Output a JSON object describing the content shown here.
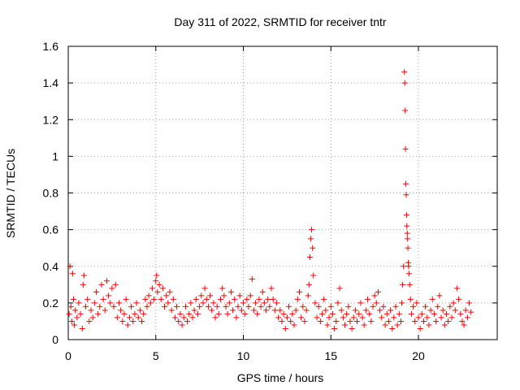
{
  "chart_data": {
    "type": "scatter",
    "title": "Day 311 of 2022, SRMTID for receiver tntr",
    "xlabel": "GPS time / hours",
    "ylabel": "SRMTID / TECUs",
    "xlim": [
      0,
      24.5
    ],
    "ylim": [
      0,
      1.6
    ],
    "xticks": [
      0,
      5,
      10,
      15,
      20
    ],
    "xtick_labels": [
      "0",
      "5",
      "10",
      "15",
      "20"
    ],
    "yticks": [
      0,
      0.2,
      0.4,
      0.6,
      0.8,
      1.0,
      1.2,
      1.4,
      1.6
    ],
    "ytick_labels": [
      "0",
      "0.2",
      "0.4",
      "0.6",
      "0.8",
      "1",
      "1.2",
      "1.4",
      "1.6"
    ],
    "grid": true,
    "marker": "+",
    "marker_color": "#ff0000",
    "series": [
      {
        "name": "SRMTID",
        "points": [
          [
            0.05,
            0.14
          ],
          [
            0.1,
            0.4
          ],
          [
            0.15,
            0.18
          ],
          [
            0.2,
            0.1
          ],
          [
            0.25,
            0.36
          ],
          [
            0.3,
            0.22
          ],
          [
            0.35,
            0.08
          ],
          [
            0.4,
            0.16
          ],
          [
            0.5,
            0.12
          ],
          [
            0.6,
            0.2
          ],
          [
            0.7,
            0.14
          ],
          [
            0.8,
            0.06
          ],
          [
            0.85,
            0.3
          ],
          [
            0.9,
            0.35
          ],
          [
            1.0,
            0.18
          ],
          [
            1.1,
            0.22
          ],
          [
            1.2,
            0.1
          ],
          [
            1.3,
            0.16
          ],
          [
            1.4,
            0.12
          ],
          [
            1.5,
            0.2
          ],
          [
            1.6,
            0.26
          ],
          [
            1.7,
            0.14
          ],
          [
            1.8,
            0.18
          ],
          [
            1.9,
            0.3
          ],
          [
            2.0,
            0.22
          ],
          [
            2.1,
            0.16
          ],
          [
            2.2,
            0.32
          ],
          [
            2.3,
            0.24
          ],
          [
            2.4,
            0.2
          ],
          [
            2.5,
            0.28
          ],
          [
            2.6,
            0.18
          ],
          [
            2.7,
            0.3
          ],
          [
            2.8,
            0.12
          ],
          [
            2.9,
            0.2
          ],
          [
            3.0,
            0.16
          ],
          [
            3.1,
            0.1
          ],
          [
            3.2,
            0.14
          ],
          [
            3.3,
            0.22
          ],
          [
            3.4,
            0.08
          ],
          [
            3.5,
            0.12
          ],
          [
            3.6,
            0.18
          ],
          [
            3.7,
            0.1
          ],
          [
            3.8,
            0.14
          ],
          [
            3.9,
            0.2
          ],
          [
            4.0,
            0.12
          ],
          [
            4.1,
            0.16
          ],
          [
            4.2,
            0.1
          ],
          [
            4.3,
            0.14
          ],
          [
            4.4,
            0.22
          ],
          [
            4.5,
            0.18
          ],
          [
            4.6,
            0.24
          ],
          [
            4.7,
            0.2
          ],
          [
            4.8,
            0.28
          ],
          [
            4.9,
            0.22
          ],
          [
            5.0,
            0.32
          ],
          [
            5.05,
            0.35
          ],
          [
            5.1,
            0.26
          ],
          [
            5.2,
            0.3
          ],
          [
            5.3,
            0.22
          ],
          [
            5.4,
            0.28
          ],
          [
            5.5,
            0.18
          ],
          [
            5.6,
            0.24
          ],
          [
            5.7,
            0.2
          ],
          [
            5.8,
            0.26
          ],
          [
            5.9,
            0.16
          ],
          [
            6.0,
            0.22
          ],
          [
            6.1,
            0.12
          ],
          [
            6.2,
            0.18
          ],
          [
            6.3,
            0.1
          ],
          [
            6.4,
            0.14
          ],
          [
            6.5,
            0.08
          ],
          [
            6.6,
            0.12
          ],
          [
            6.7,
            0.18
          ],
          [
            6.8,
            0.1
          ],
          [
            6.9,
            0.14
          ],
          [
            7.0,
            0.2
          ],
          [
            7.1,
            0.12
          ],
          [
            7.2,
            0.16
          ],
          [
            7.3,
            0.22
          ],
          [
            7.4,
            0.14
          ],
          [
            7.5,
            0.18
          ],
          [
            7.6,
            0.24
          ],
          [
            7.7,
            0.2
          ],
          [
            7.8,
            0.28
          ],
          [
            7.9,
            0.22
          ],
          [
            8.0,
            0.18
          ],
          [
            8.1,
            0.24
          ],
          [
            8.2,
            0.16
          ],
          [
            8.3,
            0.2
          ],
          [
            8.4,
            0.12
          ],
          [
            8.5,
            0.18
          ],
          [
            8.6,
            0.14
          ],
          [
            8.7,
            0.22
          ],
          [
            8.8,
            0.28
          ],
          [
            8.9,
            0.24
          ],
          [
            9.0,
            0.18
          ],
          [
            9.1,
            0.14
          ],
          [
            9.2,
            0.2
          ],
          [
            9.3,
            0.26
          ],
          [
            9.4,
            0.16
          ],
          [
            9.5,
            0.22
          ],
          [
            9.6,
            0.12
          ],
          [
            9.7,
            0.18
          ],
          [
            9.8,
            0.24
          ],
          [
            9.9,
            0.16
          ],
          [
            10.0,
            0.2
          ],
          [
            10.1,
            0.14
          ],
          [
            10.2,
            0.22
          ],
          [
            10.3,
            0.18
          ],
          [
            10.4,
            0.24
          ],
          [
            10.5,
            0.33
          ],
          [
            10.6,
            0.16
          ],
          [
            10.7,
            0.2
          ],
          [
            10.8,
            0.14
          ],
          [
            10.9,
            0.22
          ],
          [
            11.0,
            0.18
          ],
          [
            11.1,
            0.26
          ],
          [
            11.2,
            0.2
          ],
          [
            11.3,
            0.16
          ],
          [
            11.4,
            0.22
          ],
          [
            11.5,
            0.18
          ],
          [
            11.6,
            0.28
          ],
          [
            11.7,
            0.22
          ],
          [
            11.8,
            0.16
          ],
          [
            11.9,
            0.2
          ],
          [
            12.0,
            0.12
          ],
          [
            12.1,
            0.16
          ],
          [
            12.2,
            0.1
          ],
          [
            12.3,
            0.14
          ],
          [
            12.4,
            0.06
          ],
          [
            12.5,
            0.12
          ],
          [
            12.6,
            0.18
          ],
          [
            12.7,
            0.1
          ],
          [
            12.8,
            0.14
          ],
          [
            12.9,
            0.08
          ],
          [
            13.0,
            0.16
          ],
          [
            13.1,
            0.22
          ],
          [
            13.2,
            0.26
          ],
          [
            13.3,
            0.12
          ],
          [
            13.4,
            0.18
          ],
          [
            13.5,
            0.1
          ],
          [
            13.6,
            0.16
          ],
          [
            13.7,
            0.24
          ],
          [
            13.75,
            0.3
          ],
          [
            13.8,
            0.45
          ],
          [
            13.85,
            0.55
          ],
          [
            13.9,
            0.6
          ],
          [
            13.95,
            0.5
          ],
          [
            14.0,
            0.35
          ],
          [
            14.1,
            0.2
          ],
          [
            14.2,
            0.12
          ],
          [
            14.3,
            0.18
          ],
          [
            14.4,
            0.1
          ],
          [
            14.5,
            0.14
          ],
          [
            14.6,
            0.22
          ],
          [
            14.7,
            0.16
          ],
          [
            14.8,
            0.08
          ],
          [
            14.9,
            0.12
          ],
          [
            15.0,
            0.18
          ],
          [
            15.1,
            0.14
          ],
          [
            15.2,
            0.06
          ],
          [
            15.3,
            0.1
          ],
          [
            15.4,
            0.2
          ],
          [
            15.5,
            0.28
          ],
          [
            15.6,
            0.16
          ],
          [
            15.7,
            0.12
          ],
          [
            15.8,
            0.08
          ],
          [
            15.9,
            0.14
          ],
          [
            16.0,
            0.18
          ],
          [
            16.1,
            0.1
          ],
          [
            16.2,
            0.06
          ],
          [
            16.3,
            0.12
          ],
          [
            16.4,
            0.16
          ],
          [
            16.5,
            0.1
          ],
          [
            16.6,
            0.14
          ],
          [
            16.7,
            0.2
          ],
          [
            16.8,
            0.12
          ],
          [
            16.9,
            0.08
          ],
          [
            17.0,
            0.16
          ],
          [
            17.1,
            0.22
          ],
          [
            17.2,
            0.14
          ],
          [
            17.3,
            0.1
          ],
          [
            17.4,
            0.18
          ],
          [
            17.5,
            0.24
          ],
          [
            17.6,
            0.2
          ],
          [
            17.7,
            0.26
          ],
          [
            17.8,
            0.16
          ],
          [
            17.9,
            0.12
          ],
          [
            18.0,
            0.18
          ],
          [
            18.1,
            0.08
          ],
          [
            18.2,
            0.14
          ],
          [
            18.3,
            0.1
          ],
          [
            18.4,
            0.16
          ],
          [
            18.5,
            0.06
          ],
          [
            18.6,
            0.12
          ],
          [
            18.7,
            0.18
          ],
          [
            18.8,
            0.08
          ],
          [
            18.9,
            0.14
          ],
          [
            19.0,
            0.1
          ],
          [
            19.05,
            0.2
          ],
          [
            19.1,
            0.3
          ],
          [
            19.15,
            0.4
          ],
          [
            19.2,
            1.46
          ],
          [
            19.22,
            1.4
          ],
          [
            19.24,
            1.25
          ],
          [
            19.26,
            1.04
          ],
          [
            19.28,
            0.85
          ],
          [
            19.3,
            0.79
          ],
          [
            19.32,
            0.68
          ],
          [
            19.34,
            0.62
          ],
          [
            19.36,
            0.58
          ],
          [
            19.38,
            0.55
          ],
          [
            19.4,
            0.5
          ],
          [
            19.42,
            0.42
          ],
          [
            19.44,
            0.4
          ],
          [
            19.46,
            0.36
          ],
          [
            19.5,
            0.3
          ],
          [
            19.55,
            0.22
          ],
          [
            19.6,
            0.14
          ],
          [
            19.7,
            0.18
          ],
          [
            19.8,
            0.1
          ],
          [
            19.9,
            0.2
          ],
          [
            20.0,
            0.12
          ],
          [
            20.1,
            0.06
          ],
          [
            20.2,
            0.14
          ],
          [
            20.3,
            0.1
          ],
          [
            20.4,
            0.18
          ],
          [
            20.5,
            0.12
          ],
          [
            20.6,
            0.08
          ],
          [
            20.7,
            0.16
          ],
          [
            20.8,
            0.22
          ],
          [
            20.9,
            0.14
          ],
          [
            21.0,
            0.1
          ],
          [
            21.1,
            0.18
          ],
          [
            21.2,
            0.24
          ],
          [
            21.3,
            0.12
          ],
          [
            21.4,
            0.16
          ],
          [
            21.5,
            0.08
          ],
          [
            21.6,
            0.14
          ],
          [
            21.7,
            0.1
          ],
          [
            21.8,
            0.18
          ],
          [
            21.9,
            0.12
          ],
          [
            22.0,
            0.2
          ],
          [
            22.1,
            0.16
          ],
          [
            22.2,
            0.28
          ],
          [
            22.3,
            0.22
          ],
          [
            22.4,
            0.14
          ],
          [
            22.5,
            0.1
          ],
          [
            22.6,
            0.08
          ],
          [
            22.7,
            0.16
          ],
          [
            22.8,
            0.12
          ],
          [
            22.9,
            0.2
          ],
          [
            23.0,
            0.15
          ]
        ]
      }
    ]
  }
}
